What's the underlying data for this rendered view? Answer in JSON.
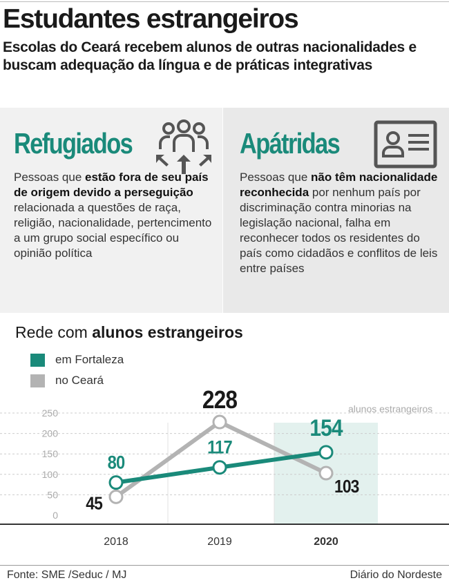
{
  "header": {
    "title": "Estudantes estrangeiros",
    "subtitle": "Escolas do Ceará recebem alunos de outras nacionalidades e buscam adequação da língua e de práticas integrativas"
  },
  "panels": {
    "refugiados": {
      "title": "Refugiados",
      "icon": "group-arrows-icon",
      "text_1": "Pessoas que ",
      "bold_1": "estão fora de seu país de origem devido a perseguição",
      "text_2": " relacionada a questões de raça, religião, nacionalidade, pertencimento a um grupo social específico ou opinião política"
    },
    "apatridas": {
      "title": "Apátridas",
      "icon": "id-card-icon",
      "text_1": "Pessoas que ",
      "bold_1": "não têm nacionalidade reconhecida",
      "text_2": " por nenhum país por discriminação contra minorias na legislação nacional, falha em reconhecer todos os residentes do país como cidadãos e conflitos de leis entre países"
    }
  },
  "chart_title": {
    "prefix": "Rede com ",
    "bold": "alunos estrangeiros"
  },
  "colors": {
    "teal": "#1a8a7a",
    "gray": "#b3b3b3",
    "highlight": "#e3f1ee"
  },
  "chart_data": {
    "type": "line",
    "title": "Rede com alunos estrangeiros",
    "ylabel": "alunos estrangeiros",
    "x": [
      "2018",
      "2019",
      "2020"
    ],
    "highlight_x": "2020",
    "yticks": [
      "0",
      "50",
      "100",
      "150",
      "200",
      "250"
    ],
    "ylim": [
      0,
      250
    ],
    "grid": true,
    "legend": "top-left",
    "series": [
      {
        "name": "em Fortaleza",
        "color": "#1a8a7a",
        "values": [
          80,
          117,
          154
        ],
        "labels": [
          "80",
          "117",
          "154"
        ]
      },
      {
        "name": "no Ceará",
        "color": "#b3b3b3",
        "values": [
          45,
          228,
          103
        ],
        "labels": [
          "45",
          "228",
          "103"
        ]
      }
    ]
  },
  "footer": {
    "source": "Fonte: SME /Seduc / MJ",
    "publisher": "Diário do Nordeste"
  }
}
